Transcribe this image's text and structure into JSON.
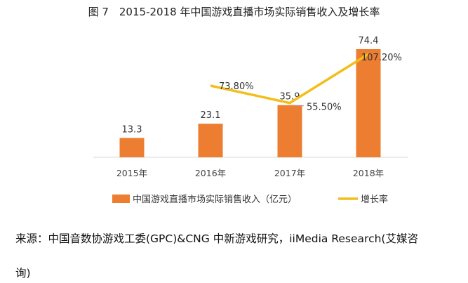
{
  "chart_data": {
    "type": "bar",
    "title": "图 7　2015-2018 年中国游戏直播市场实际销售收入及增长率",
    "categories": [
      "2015年",
      "2016年",
      "2017年",
      "2018年"
    ],
    "series": [
      {
        "name": "中国游戏直播市场实际销售收入（亿元）",
        "type": "bar",
        "values": [
          13.3,
          23.1,
          35.9,
          74.4
        ],
        "labels": [
          "13.3",
          "23.1",
          "35.9",
          "74.4"
        ],
        "color": "#ED7D31"
      },
      {
        "name": "增长率",
        "type": "line",
        "values": [
          null,
          73.8,
          55.5,
          107.2
        ],
        "labels": [
          "",
          "73.80%",
          "55.50%",
          "107.20%"
        ],
        "unit": "%",
        "color": "#F2BE1A"
      }
    ],
    "legend": "bottom",
    "grid": false,
    "ylim": [
      0,
      80
    ]
  },
  "source": {
    "line1": "来源：中国音数协游戏工委(GPC)&CNG 中新游戏研究，iiMedia Research(艾媒咨",
    "line2": "询)"
  }
}
